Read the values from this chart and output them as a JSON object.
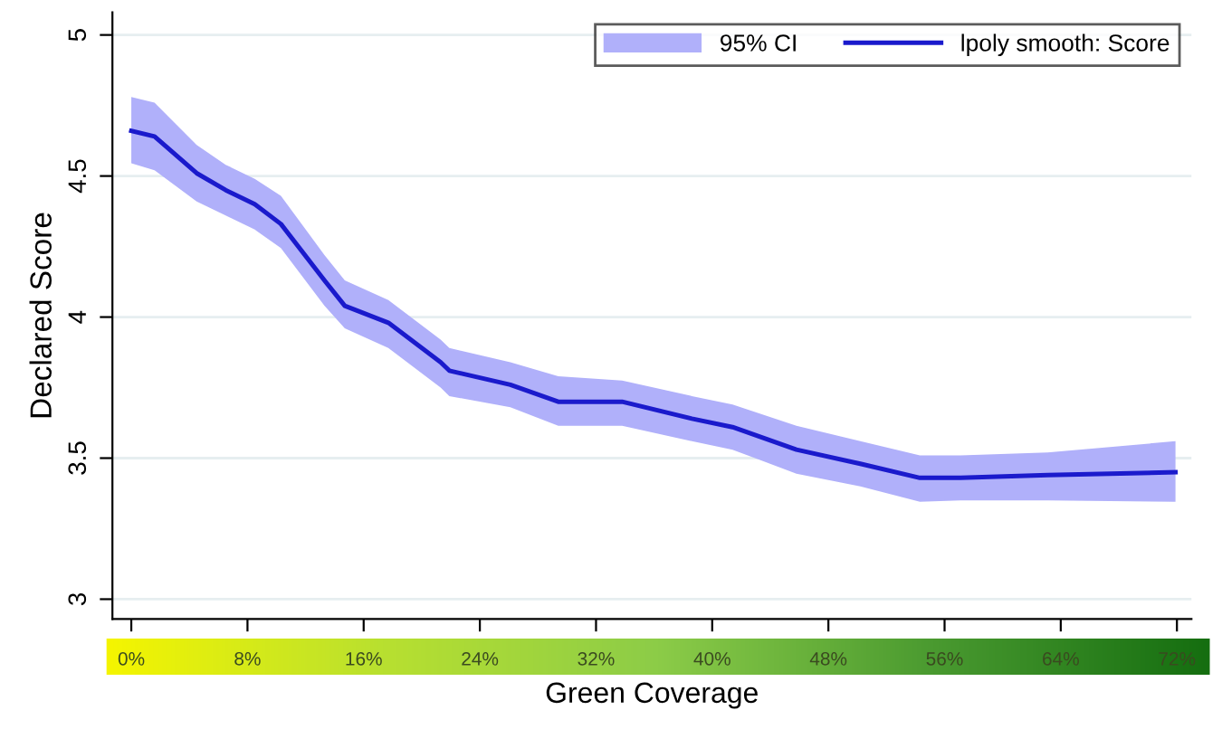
{
  "chart_data": {
    "type": "line",
    "xlabel": "Green Coverage",
    "ylabel": "Declared Score",
    "x": [
      0,
      1.6,
      4.5,
      6.5,
      8.5,
      10.3,
      13.3,
      14.7,
      17.7,
      21.3,
      21.9,
      26.1,
      29.4,
      33.8,
      38.6,
      41.4,
      45.8,
      50.2,
      54.3,
      57.1,
      63.1,
      71.9
    ],
    "series": [
      {
        "type": "area",
        "name": "95% CI",
        "color": "#b0b0fa",
        "values": [
          null,
          null,
          null,
          null,
          null,
          null,
          null,
          null,
          null,
          null,
          null,
          null,
          null,
          null,
          null,
          null,
          null,
          null,
          null,
          null,
          null,
          null
        ]
      },
      {
        "name": "lpoly smooth: Score",
        "color": "#1a1acc",
        "values": [
          4.66,
          4.64,
          4.51,
          4.45,
          4.4,
          4.33,
          4.13,
          4.04,
          3.98,
          3.84,
          3.81,
          3.76,
          3.7,
          3.7,
          3.64,
          3.61,
          3.53,
          3.48,
          3.43,
          3.43,
          3.44,
          3.45
        ],
        "lower": [
          4.545,
          4.52,
          4.41,
          4.36,
          4.31,
          4.245,
          4.04,
          3.96,
          3.89,
          3.75,
          3.72,
          3.68,
          3.615,
          3.615,
          3.56,
          3.53,
          3.445,
          3.4,
          3.345,
          3.35,
          3.35,
          3.345
        ],
        "upper": [
          4.78,
          4.76,
          4.61,
          4.54,
          4.49,
          4.43,
          4.22,
          4.13,
          4.06,
          3.92,
          3.89,
          3.84,
          3.79,
          3.775,
          3.72,
          3.69,
          3.615,
          3.56,
          3.51,
          3.51,
          3.52,
          3.56
        ]
      }
    ],
    "xlim": [
      -1.3,
      73
    ],
    "ylim": [
      2.93,
      5.08
    ],
    "xticks": [
      {
        "value": 0,
        "label": "0%"
      },
      {
        "value": 8,
        "label": "8%"
      },
      {
        "value": 16,
        "label": "16%"
      },
      {
        "value": 24,
        "label": "24%"
      },
      {
        "value": 32,
        "label": "32%"
      },
      {
        "value": 40,
        "label": "40%"
      },
      {
        "value": 48,
        "label": "48%"
      },
      {
        "value": 56,
        "label": "56%"
      },
      {
        "value": 64,
        "label": "64%"
      },
      {
        "value": 72,
        "label": "72%"
      }
    ],
    "yticks": [
      3,
      3.5,
      4,
      4.5,
      5
    ],
    "grid": "y",
    "legend": "top right",
    "line_style": "solid",
    "marker": "none"
  }
}
